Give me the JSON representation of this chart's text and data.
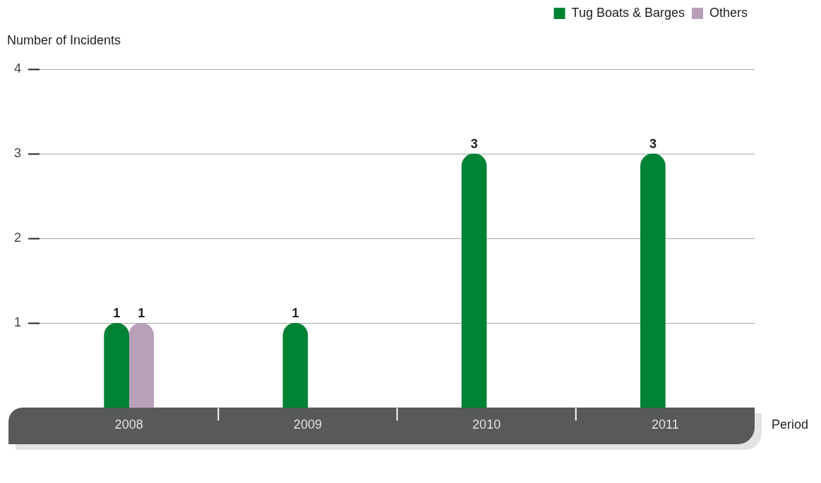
{
  "chart_data": {
    "type": "bar",
    "ylabel": "Number of Incidents",
    "xlabel": "Period",
    "categories": [
      "2008",
      "2009",
      "2010",
      "2011"
    ],
    "series": [
      {
        "name": "Tug Boats & Barges",
        "color": "#008234",
        "values": [
          1,
          1,
          3,
          3
        ]
      },
      {
        "name": "Others",
        "color": "#b9a0b9",
        "values": [
          1,
          null,
          null,
          null
        ]
      }
    ],
    "ylim": [
      0,
      4
    ],
    "yticks": [
      1,
      2,
      3,
      4
    ],
    "grid": "y",
    "legend": "top right",
    "data_labels": true
  }
}
